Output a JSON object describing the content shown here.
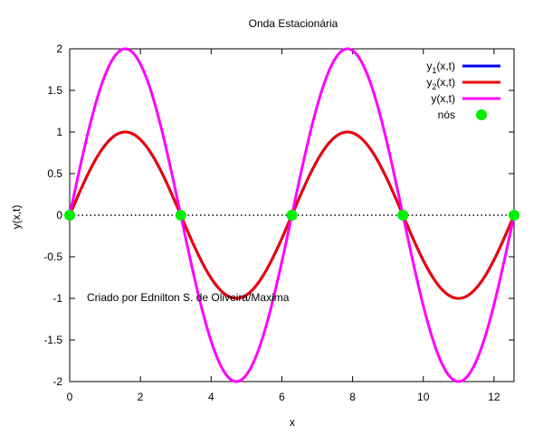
{
  "chart_data": {
    "type": "line",
    "title": "Onda Estacionária",
    "xlabel": "x",
    "ylabel": "y(x,t)",
    "xlim": [
      0,
      12.566
    ],
    "ylim": [
      -2,
      2
    ],
    "xticks": [
      0,
      2,
      4,
      6,
      8,
      10,
      12
    ],
    "xtick_labels": [
      "0",
      "2",
      "4",
      "6",
      "8",
      "10",
      "12"
    ],
    "yticks": [
      -2,
      -1.5,
      -1,
      -0.5,
      0,
      0.5,
      1,
      1.5,
      2
    ],
    "ytick_labels": [
      "-2",
      "-1.5",
      "-1",
      "-0.5",
      "0",
      "0.5",
      "1",
      "1.5",
      "2"
    ],
    "grid": false,
    "legend_position": "top-right",
    "annotation": "Criado por Ednilton S. de Oliveira/Maxima",
    "zero_line": {
      "y": 0,
      "style": "dotted",
      "color": "#000000"
    },
    "series": [
      {
        "name": "y1(x,t)",
        "name_base": "y",
        "name_sub": "1",
        "name_rest": "(x,t)",
        "color": "#0000ff",
        "function": "sin(x)",
        "x": [
          0,
          0.785,
          1.571,
          2.356,
          3.142,
          3.927,
          4.712,
          5.498,
          6.283,
          7.069,
          7.854,
          8.639,
          9.425,
          10.21,
          10.996,
          11.781,
          12.566
        ],
        "y": [
          0,
          0.707,
          1,
          0.707,
          0,
          -0.707,
          -1,
          -0.707,
          0,
          0.707,
          1,
          0.707,
          0,
          -0.707,
          -1,
          -0.707,
          0
        ]
      },
      {
        "name": "y2(x,t)",
        "name_base": "y",
        "name_sub": "2",
        "name_rest": "(x,t)",
        "color": "#ee0000",
        "function": "sin(x)",
        "x": [
          0,
          0.785,
          1.571,
          2.356,
          3.142,
          3.927,
          4.712,
          5.498,
          6.283,
          7.069,
          7.854,
          8.639,
          9.425,
          10.21,
          10.996,
          11.781,
          12.566
        ],
        "y": [
          0,
          0.707,
          1,
          0.707,
          0,
          -0.707,
          -1,
          -0.707,
          0,
          0.707,
          1,
          0.707,
          0,
          -0.707,
          -1,
          -0.707,
          0
        ]
      },
      {
        "name": "y(x,t)",
        "name_base": "y",
        "name_sub": "",
        "name_rest": "(x,t)",
        "color": "#ff00ff",
        "function": "2*sin(x)",
        "x": [
          0,
          0.785,
          1.571,
          2.356,
          3.142,
          3.927,
          4.712,
          5.498,
          6.283,
          7.069,
          7.854,
          8.639,
          9.425,
          10.21,
          10.996,
          11.781,
          12.566
        ],
        "y": [
          0,
          1.414,
          2,
          1.414,
          0,
          -1.414,
          -2,
          -1.414,
          0,
          1.414,
          2,
          1.414,
          0,
          -1.414,
          -2,
          -1.414,
          0
        ]
      }
    ],
    "nodes": {
      "name": "nós",
      "color": "#00ee00",
      "points": [
        {
          "x": 0,
          "y": 0
        },
        {
          "x": 3.1416,
          "y": 0
        },
        {
          "x": 6.2832,
          "y": 0
        },
        {
          "x": 9.4248,
          "y": 0
        },
        {
          "x": 12.566,
          "y": 0
        }
      ]
    }
  }
}
